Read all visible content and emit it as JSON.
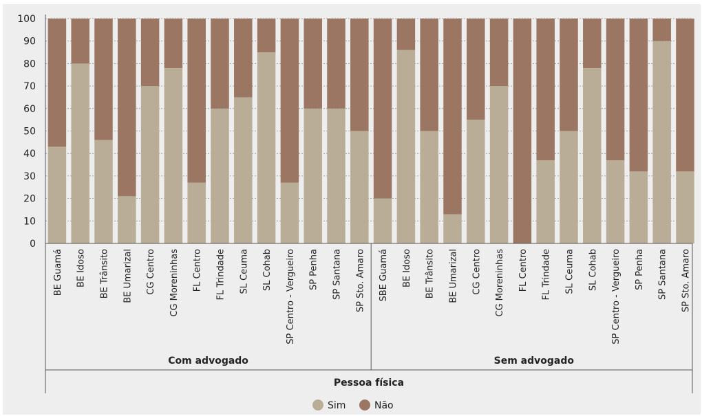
{
  "chart_data": {
    "type": "bar",
    "stacked": true,
    "yticks": [
      "0",
      "10",
      "20",
      "30",
      "40",
      "50",
      "60",
      "70",
      "80",
      "90",
      "100"
    ],
    "ylim": [
      0,
      100
    ],
    "grid": true,
    "axis_title": "Pessoa física",
    "legend_position": "bottom",
    "colors": {
      "sim": "#b9ad98",
      "nao": "#9a7663"
    },
    "legend": [
      {
        "label": "Sim",
        "key": "sim"
      },
      {
        "label": "Não",
        "key": "nao"
      }
    ],
    "groups": [
      {
        "label": "Com advogado",
        "categories": [
          "BE Guamá",
          "BE Idoso",
          "BE Trânsito",
          "BE Umarizal",
          "CG Centro",
          "CG Moreninhas",
          "FL Centro",
          "FL Trindade",
          "SL Ceuma",
          "SL Cohab",
          "SP Centro - Vergueiro",
          "SP Penha",
          "SP Santana",
          "SP Sto. Amaro"
        ],
        "sim": [
          43,
          80,
          46,
          21,
          70,
          78,
          27,
          60,
          65,
          85,
          27,
          60,
          60,
          50
        ],
        "nao": [
          57,
          20,
          54,
          79,
          30,
          22,
          73,
          40,
          35,
          15,
          73,
          40,
          40,
          50
        ]
      },
      {
        "label": "Sem advogado",
        "categories": [
          "SBE Guamá",
          "BE Idoso",
          "BE Trânsito",
          "BE Umarizal",
          "CG Centro",
          "CG Moreninhas",
          "FL Centro",
          "FL Trindade",
          "SL Ceuma",
          "SL Cohab",
          "SP Centro - Vergueiro",
          "SP Penha",
          "SP Santana",
          "SP Sto. Amaro"
        ],
        "sim": [
          20,
          86,
          50,
          13,
          55,
          70,
          0,
          37,
          50,
          78,
          37,
          32,
          90,
          32
        ],
        "nao": [
          80,
          14,
          50,
          87,
          45,
          30,
          100,
          63,
          50,
          22,
          63,
          68,
          10,
          68
        ]
      }
    ]
  }
}
